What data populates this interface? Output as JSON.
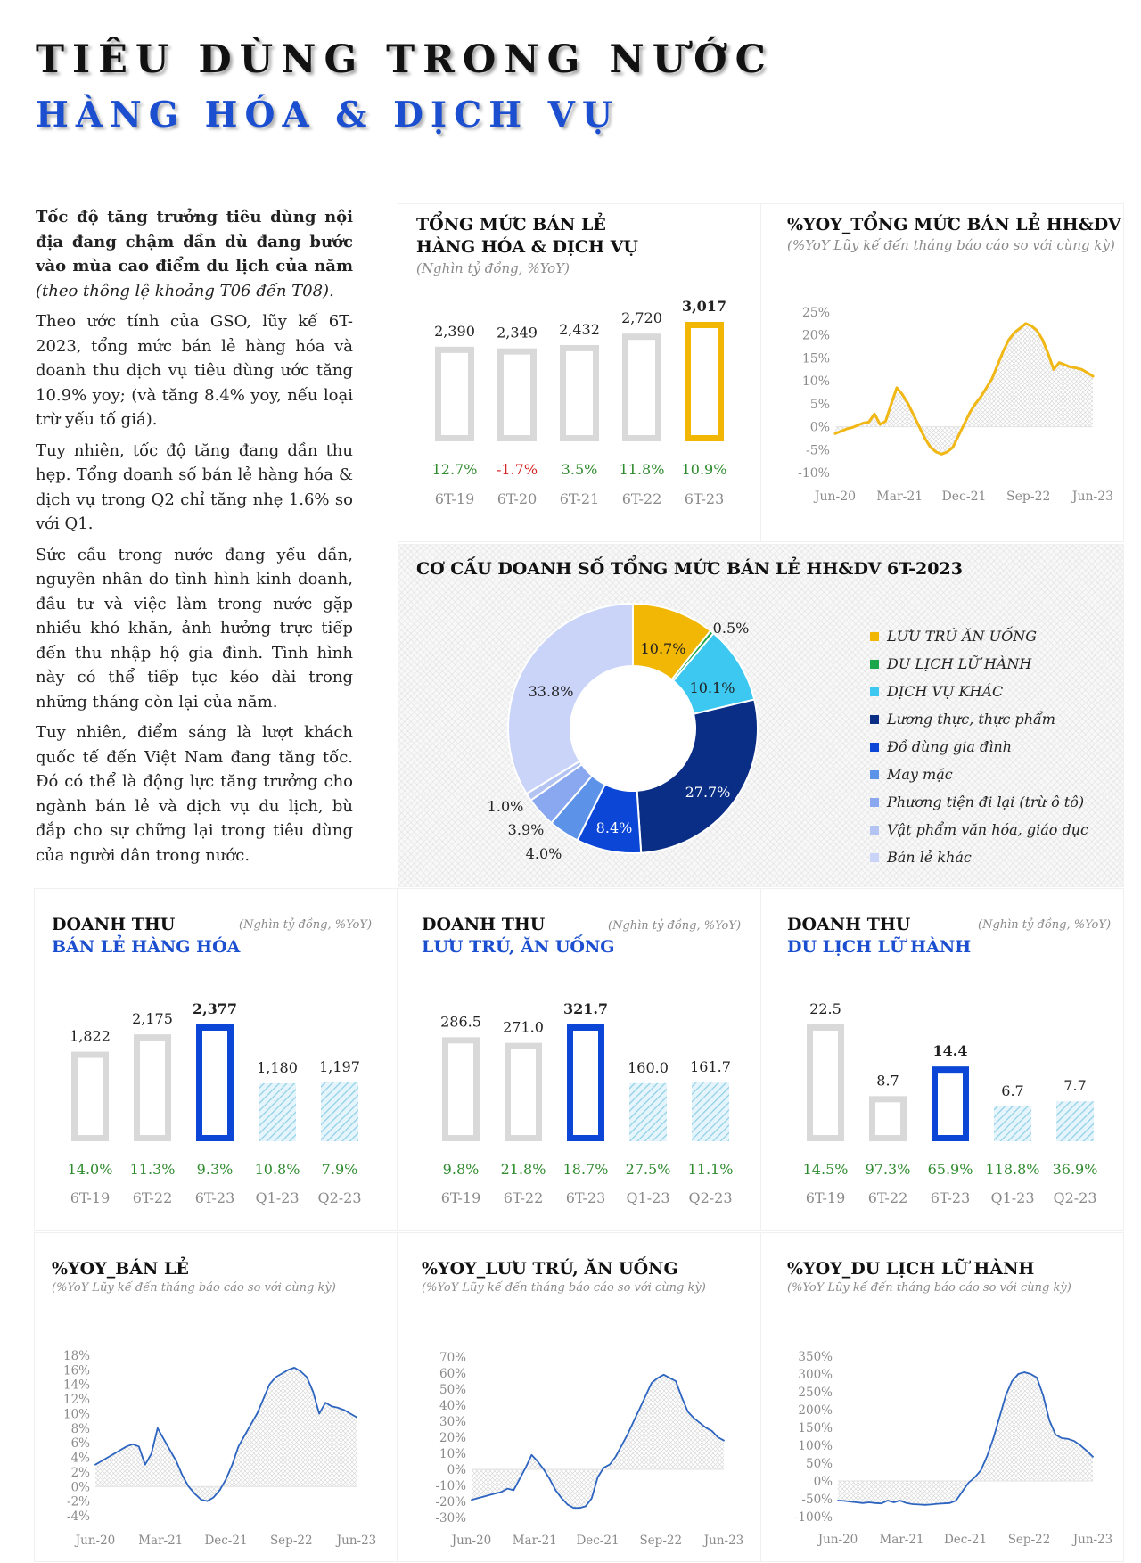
{
  "header": {
    "title": "TIÊU DÙNG TRONG NƯỚC",
    "subtitle": "HÀNG HÓA & DỊCH VỤ"
  },
  "intro": {
    "p1_bold": "Tốc độ tăng trưởng tiêu dùng nội địa đang chậm dần dù đang bước vào mùa cao điểm du lịch của năm",
    "p1_italic": "(theo thông lệ khoảng T06 đến T08).",
    "p2": "Theo ước tính của GSO, lũy kế 6T-2023, tổng mức bán lẻ hàng hóa và doanh thu dịch vụ tiêu dùng ước tăng 10.9% yoy; (và tăng 8.4% yoy, nếu loại trừ yếu tố giá).",
    "p3": "Tuy nhiên, tốc độ tăng đang dần thu hẹp. Tổng doanh số bán lẻ hàng hóa & dịch vụ trong Q2 chỉ tăng nhẹ 1.6% so với Q1.",
    "p4": "Sức cầu trong nước đang yếu dần, nguyên nhân do tình hình kinh doanh, đầu tư và việc làm trong nước gặp nhiều khó khăn, ảnh hưởng trực tiếp đến thu nhập hộ gia đình. Tình hình này có thể tiếp tục kéo dài trong những tháng còn lại của năm.",
    "p5": "Tuy nhiên, điểm sáng là lượt khách quốc tế đến Việt Nam đang tăng tốc. Đó có thể là động lực tăng trưởng cho ngành bán lẻ và dịch vụ du lịch, bù đắp cho sự chững lại trong tiêu dùng của người dân trong nước."
  },
  "colors": {
    "bar_grey": "#d9d9d9",
    "bar_gold": "#f2b705",
    "bar_blue": "#0b46d6",
    "bar_hatch": "#a8d8ea",
    "growth_green": "#2e8b2e",
    "growth_red": "#d62424",
    "line_gold": "#f0b715",
    "line_blue": "#2c64c0"
  },
  "chart_data": [
    {
      "id": "retail_total",
      "type": "bar",
      "title_line1": "TỔNG MỨC BÁN LẺ",
      "title_line2": "HÀNG HÓA & DỊCH VỤ",
      "subtitle": "(Nghìn tỷ đồng, %YoY)",
      "categories": [
        "6T-19",
        "6T-20",
        "6T-21",
        "6T-22",
        "6T-23"
      ],
      "values": [
        2390,
        2349,
        2432,
        2720,
        3017
      ],
      "value_labels": [
        "2,390",
        "2,349",
        "2,432",
        "2,720",
        "3,017"
      ],
      "growth_labels": [
        "12.7%",
        "-1.7%",
        "3.5%",
        "11.8%",
        "10.9%"
      ],
      "ylim": [
        0,
        3017
      ]
    },
    {
      "id": "yoy_total",
      "type": "area",
      "title": "%YOY_TỔNG MỨC BÁN LẺ HH&DV",
      "subtitle": "(%YoY Lũy kế đến tháng báo cáo so với cùng kỳ)",
      "ylim": [
        -10,
        25
      ],
      "yticks": [
        "-10%",
        "-5%",
        "0%",
        "5%",
        "10%",
        "15%",
        "20%",
        "25%"
      ],
      "xticks": [
        "Jun-20",
        "Mar-21",
        "Dec-21",
        "Sep-22",
        "Jun-23"
      ],
      "values": [
        -1.5,
        -1.0,
        -0.5,
        -0.2,
        0.3,
        0.8,
        1.0,
        2.8,
        0.5,
        1.2,
        5.0,
        8.5,
        7.0,
        5.0,
        2.5,
        0.0,
        -2.5,
        -4.5,
        -5.5,
        -6.0,
        -5.5,
        -4.5,
        -2.0,
        0.5,
        3.0,
        5.0,
        6.5,
        8.5,
        10.5,
        13.5,
        16.5,
        19.0,
        20.5,
        21.5,
        22.5,
        22.0,
        21.0,
        19.0,
        16.0,
        12.5,
        14.0,
        13.5,
        13.0,
        12.8,
        12.5,
        11.8,
        11.0
      ]
    },
    {
      "id": "structure",
      "type": "pie",
      "title": "CƠ CẤU DOANH SỐ TỔNG MỨC BÁN LẺ HH&DV 6T-2023",
      "labels": [
        "LƯU TRÚ ĂN UỐNG",
        "DU LỊCH LỮ HÀNH",
        "DỊCH VỤ KHÁC",
        "Lương thực, thực phẩm",
        "Đồ dùng gia đình",
        "May mặc",
        "Phương tiện đi lại (trừ ô tô)",
        "Vật phẩm văn hóa, giáo dục",
        "Bán lẻ khác"
      ],
      "values": [
        10.7,
        0.5,
        10.1,
        27.7,
        8.4,
        4.0,
        3.9,
        1.0,
        33.8
      ],
      "value_labels": [
        "10.7%",
        "0.5%",
        "10.1%",
        "27.7%",
        "8.4%",
        "4.0%",
        "3.9%",
        "1.0%",
        "33.8%"
      ],
      "colors": [
        "#f2b705",
        "#1aa64a",
        "#3cc8f0",
        "#0a2e86",
        "#0b46d6",
        "#5c93e8",
        "#8aa8ef",
        "#b3c4f2",
        "#c9d4f8"
      ]
    },
    {
      "id": "retail_goods",
      "type": "bar",
      "title_line1": "DOANH THU",
      "title_line2": "BÁN LẺ HÀNG HÓA",
      "subtitle": "(Nghìn tỷ đồng, %YoY)",
      "categories": [
        "6T-19",
        "6T-22",
        "6T-23",
        "Q1-23",
        "Q2-23"
      ],
      "values": [
        1822,
        2175,
        2377,
        1180,
        1197
      ],
      "value_labels": [
        "1,822",
        "2,175",
        "2,377",
        "1,180",
        "1,197"
      ],
      "growth_labels": [
        "14.0%",
        "11.3%",
        "9.3%",
        "10.8%",
        "7.9%"
      ],
      "ylim": [
        0,
        2377
      ]
    },
    {
      "id": "accommodation",
      "type": "bar",
      "title_line1": "DOANH THU",
      "title_line2": "LƯU TRÚ, ĂN UỐNG",
      "subtitle": "(Nghìn tỷ đồng, %YoY)",
      "categories": [
        "6T-19",
        "6T-22",
        "6T-23",
        "Q1-23",
        "Q2-23"
      ],
      "values": [
        286.5,
        271.0,
        321.7,
        160.0,
        161.7
      ],
      "value_labels": [
        "286.5",
        "271.0",
        "321.7",
        "160.0",
        "161.7"
      ],
      "growth_labels": [
        "9.8%",
        "21.8%",
        "18.7%",
        "27.5%",
        "11.1%"
      ],
      "ylim": [
        0,
        321.7
      ]
    },
    {
      "id": "travel",
      "type": "bar",
      "title_line1": "DOANH THU",
      "title_line2": "DU LỊCH LỮ HÀNH",
      "subtitle": "(Nghìn tỷ đồng, %YoY)",
      "categories": [
        "6T-19",
        "6T-22",
        "6T-23",
        "Q1-23",
        "Q2-23"
      ],
      "values": [
        22.5,
        8.7,
        14.4,
        6.7,
        7.7
      ],
      "value_labels": [
        "22.5",
        "8.7",
        "14.4",
        "6.7",
        "7.7"
      ],
      "growth_labels": [
        "14.5%",
        "97.3%",
        "65.9%",
        "118.8%",
        "36.9%"
      ],
      "ylim": [
        0,
        22.5
      ]
    },
    {
      "id": "yoy_retail",
      "type": "area",
      "title": "%YOY_BÁN LẺ",
      "subtitle": "(%YoY Lũy kế đến tháng báo cáo so với cùng kỳ)",
      "ylim": [
        -4,
        18
      ],
      "yticks": [
        "-4%",
        "-2%",
        "0%",
        "2%",
        "4%",
        "6%",
        "8%",
        "10%",
        "12%",
        "14%",
        "16%",
        "18%"
      ],
      "xticks": [
        "Jun-20",
        "Mar-21",
        "Dec-21",
        "Sep-22",
        "Jun-23"
      ],
      "values": [
        3.0,
        3.5,
        4.0,
        4.5,
        5.0,
        5.5,
        5.8,
        5.5,
        3.0,
        4.5,
        8.0,
        6.5,
        5.0,
        3.5,
        1.5,
        0.0,
        -1.0,
        -1.8,
        -2.0,
        -1.5,
        -0.5,
        1.0,
        3.0,
        5.5,
        7.0,
        8.5,
        10.0,
        12.0,
        14.0,
        15.0,
        15.5,
        16.0,
        16.3,
        15.8,
        15.0,
        13.0,
        10.0,
        11.5,
        11.0,
        10.8,
        10.5,
        10.0,
        9.5
      ]
    },
    {
      "id": "yoy_accommodation",
      "type": "area",
      "title": "%YOY_LƯU TRÚ, ĂN UỐNG",
      "subtitle": "(%YoY Lũy kế đến tháng báo cáo so với cùng kỳ)",
      "ylim": [
        -30,
        70
      ],
      "yticks": [
        "-30%",
        "-20%",
        "-10%",
        "0%",
        "10%",
        "20%",
        "30%",
        "40%",
        "50%",
        "60%",
        "70%"
      ],
      "xticks": [
        "Jun-20",
        "Mar-21",
        "Dec-21",
        "Sep-22",
        "Jun-23"
      ],
      "values": [
        -19,
        -18,
        -17,
        -16,
        -15,
        -14,
        -12,
        -13,
        -6,
        1,
        9,
        5,
        0,
        -6,
        -13,
        -18,
        -22,
        -24,
        -24,
        -23,
        -18,
        -5,
        1,
        3,
        8,
        15,
        22,
        30,
        38,
        46,
        54,
        57,
        59,
        57,
        55,
        45,
        36,
        32,
        29,
        26,
        24,
        20,
        18
      ]
    },
    {
      "id": "yoy_travel",
      "type": "area",
      "title": "%YOY_DU LỊCH LỮ HÀNH",
      "subtitle": "(%YoY Lũy kế đến tháng báo cáo so với cùng kỳ)",
      "ylim": [
        -100,
        350
      ],
      "yticks": [
        "-100%",
        "-50%",
        "0%",
        "50%",
        "100%",
        "150%",
        "200%",
        "250%",
        "300%",
        "350%"
      ],
      "xticks": [
        "Jun-20",
        "Mar-21",
        "Dec-21",
        "Sep-22",
        "Jun-23"
      ],
      "values": [
        -55,
        -56,
        -58,
        -60,
        -62,
        -60,
        -62,
        -63,
        -55,
        -60,
        -55,
        -62,
        -65,
        -66,
        -67,
        -66,
        -64,
        -63,
        -62,
        -55,
        -30,
        -5,
        10,
        30,
        70,
        120,
        180,
        240,
        280,
        300,
        305,
        300,
        290,
        240,
        170,
        130,
        120,
        118,
        112,
        100,
        85,
        68
      ]
    }
  ]
}
